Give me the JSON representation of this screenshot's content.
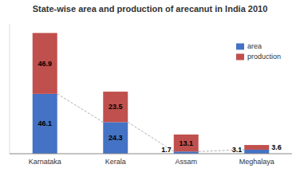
{
  "chart_data": {
    "type": "bar",
    "stacked": true,
    "title": "State-wise area and production of arecanut in India 2010",
    "categories": [
      "Karnataka",
      "Kerala",
      "Assam",
      "Meghalaya"
    ],
    "series": [
      {
        "name": "area",
        "color": "#4472C4",
        "values": [
          46.1,
          24.3,
          1.7,
          3.1
        ]
      },
      {
        "name": "production",
        "color": "#C0504D",
        "values": [
          46.9,
          23.5,
          13.1,
          3.6
        ]
      }
    ],
    "ylim": [
      0,
      100
    ],
    "tick_labels": "x",
    "data_labels": true,
    "legend": "upper right",
    "grid": false
  }
}
